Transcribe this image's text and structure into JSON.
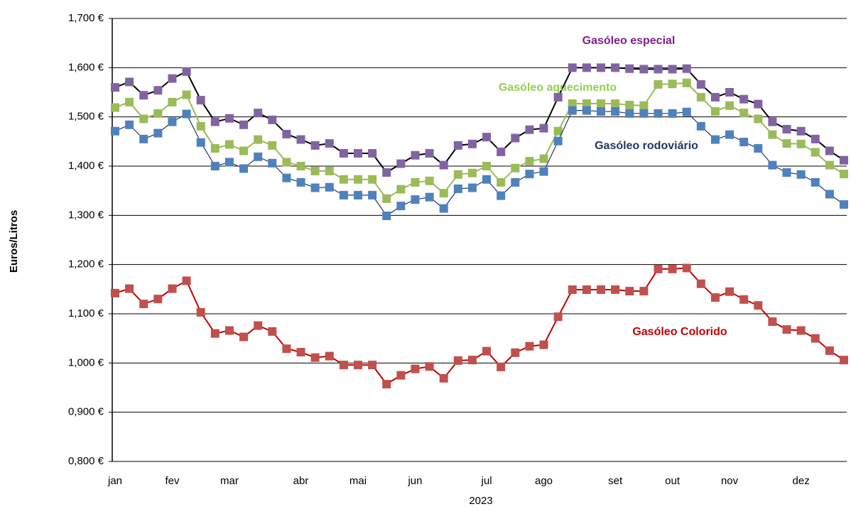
{
  "chart_data": {
    "type": "line",
    "x_label": "2023",
    "y_label": "Euros/Litros",
    "categories": [
      "jan",
      null,
      null,
      null,
      "fev",
      null,
      null,
      null,
      "mar",
      null,
      null,
      null,
      null,
      "abr",
      null,
      null,
      null,
      "mai",
      null,
      null,
      null,
      "jun",
      null,
      null,
      null,
      null,
      "jul",
      null,
      null,
      null,
      "ago",
      null,
      null,
      null,
      null,
      "set",
      null,
      null,
      null,
      "out",
      null,
      null,
      null,
      "nov",
      null,
      null,
      null,
      null,
      "dez",
      null,
      null,
      null
    ],
    "ylim": [
      0.8,
      1.7
    ],
    "yticks": [
      {
        "value": 0.8,
        "label": "0,800 €"
      },
      {
        "value": 0.9,
        "label": "0,900 €"
      },
      {
        "value": 1.0,
        "label": "1,000 €"
      },
      {
        "value": 1.1,
        "label": "1,100 €"
      },
      {
        "value": 1.2,
        "label": "1,200 €"
      },
      {
        "value": 1.3,
        "label": "1,300 €"
      },
      {
        "value": 1.4,
        "label": "1,400 €"
      },
      {
        "value": 1.5,
        "label": "1,500 €"
      },
      {
        "value": 1.6,
        "label": "1,600 €"
      },
      {
        "value": 1.7,
        "label": "1,700 €"
      }
    ],
    "grid": true,
    "series": [
      {
        "name": "Gasóleo especial",
        "color": "#8064a2",
        "line_color": "#000000",
        "label_color": "#7f1f8f",
        "values": [
          1.56,
          1.571,
          1.544,
          1.554,
          1.578,
          1.592,
          1.534,
          1.49,
          1.497,
          1.484,
          1.508,
          1.494,
          1.465,
          1.454,
          1.442,
          1.446,
          1.426,
          1.426,
          1.426,
          1.387,
          1.405,
          1.422,
          1.426,
          1.402,
          1.442,
          1.445,
          1.459,
          1.429,
          1.457,
          1.474,
          1.477,
          1.54,
          1.6,
          1.6,
          1.6,
          1.6,
          1.598,
          1.597,
          1.597,
          1.597,
          1.598,
          1.566,
          1.54,
          1.55,
          1.536,
          1.526,
          1.49,
          1.475,
          1.471,
          1.455,
          1.431,
          1.412
        ]
      },
      {
        "name": "Gasóleo aquecimento",
        "color": "#9bbb59",
        "line_color": "#9bbb59",
        "label_color": "#92d050",
        "values": [
          1.519,
          1.53,
          1.496,
          1.507,
          1.53,
          1.545,
          1.481,
          1.436,
          1.444,
          1.431,
          1.454,
          1.442,
          1.408,
          1.4,
          1.39,
          1.39,
          1.373,
          1.373,
          1.373,
          1.334,
          1.353,
          1.367,
          1.37,
          1.345,
          1.383,
          1.386,
          1.4,
          1.367,
          1.396,
          1.41,
          1.415,
          1.471,
          1.527,
          1.527,
          1.527,
          1.527,
          1.524,
          1.523,
          1.566,
          1.567,
          1.569,
          1.54,
          1.511,
          1.523,
          1.508,
          1.496,
          1.464,
          1.446,
          1.445,
          1.428,
          1.402,
          1.384
        ]
      },
      {
        "name": "Gasóleo rodoviário",
        "color": "#4f81bd",
        "line_color": "#1f3864",
        "label_color": "#1f3864",
        "values": [
          1.471,
          1.484,
          1.455,
          1.467,
          1.49,
          1.506,
          1.448,
          1.4,
          1.408,
          1.395,
          1.419,
          1.406,
          1.376,
          1.367,
          1.356,
          1.357,
          1.341,
          1.341,
          1.341,
          1.299,
          1.319,
          1.332,
          1.337,
          1.314,
          1.354,
          1.356,
          1.373,
          1.34,
          1.367,
          1.384,
          1.389,
          1.451,
          1.513,
          1.513,
          1.511,
          1.511,
          1.507,
          1.507,
          1.507,
          1.507,
          1.51,
          1.481,
          1.454,
          1.464,
          1.449,
          1.436,
          1.402,
          1.387,
          1.383,
          1.367,
          1.343,
          1.322
        ]
      },
      {
        "name": "Gasóleo Colorido",
        "color": "#c0504d",
        "line_color": "#c00000",
        "label_color": "#c00000",
        "values": [
          1.142,
          1.151,
          1.12,
          1.13,
          1.151,
          1.167,
          1.103,
          1.06,
          1.066,
          1.053,
          1.076,
          1.064,
          1.029,
          1.022,
          1.011,
          1.014,
          0.996,
          0.996,
          0.996,
          0.957,
          0.975,
          0.988,
          0.993,
          0.969,
          1.005,
          1.006,
          1.024,
          0.992,
          1.021,
          1.034,
          1.037,
          1.094,
          1.149,
          1.149,
          1.149,
          1.149,
          1.146,
          1.146,
          1.191,
          1.191,
          1.193,
          1.161,
          1.133,
          1.145,
          1.129,
          1.117,
          1.084,
          1.068,
          1.066,
          1.05,
          1.025,
          1.006
        ]
      }
    ]
  }
}
